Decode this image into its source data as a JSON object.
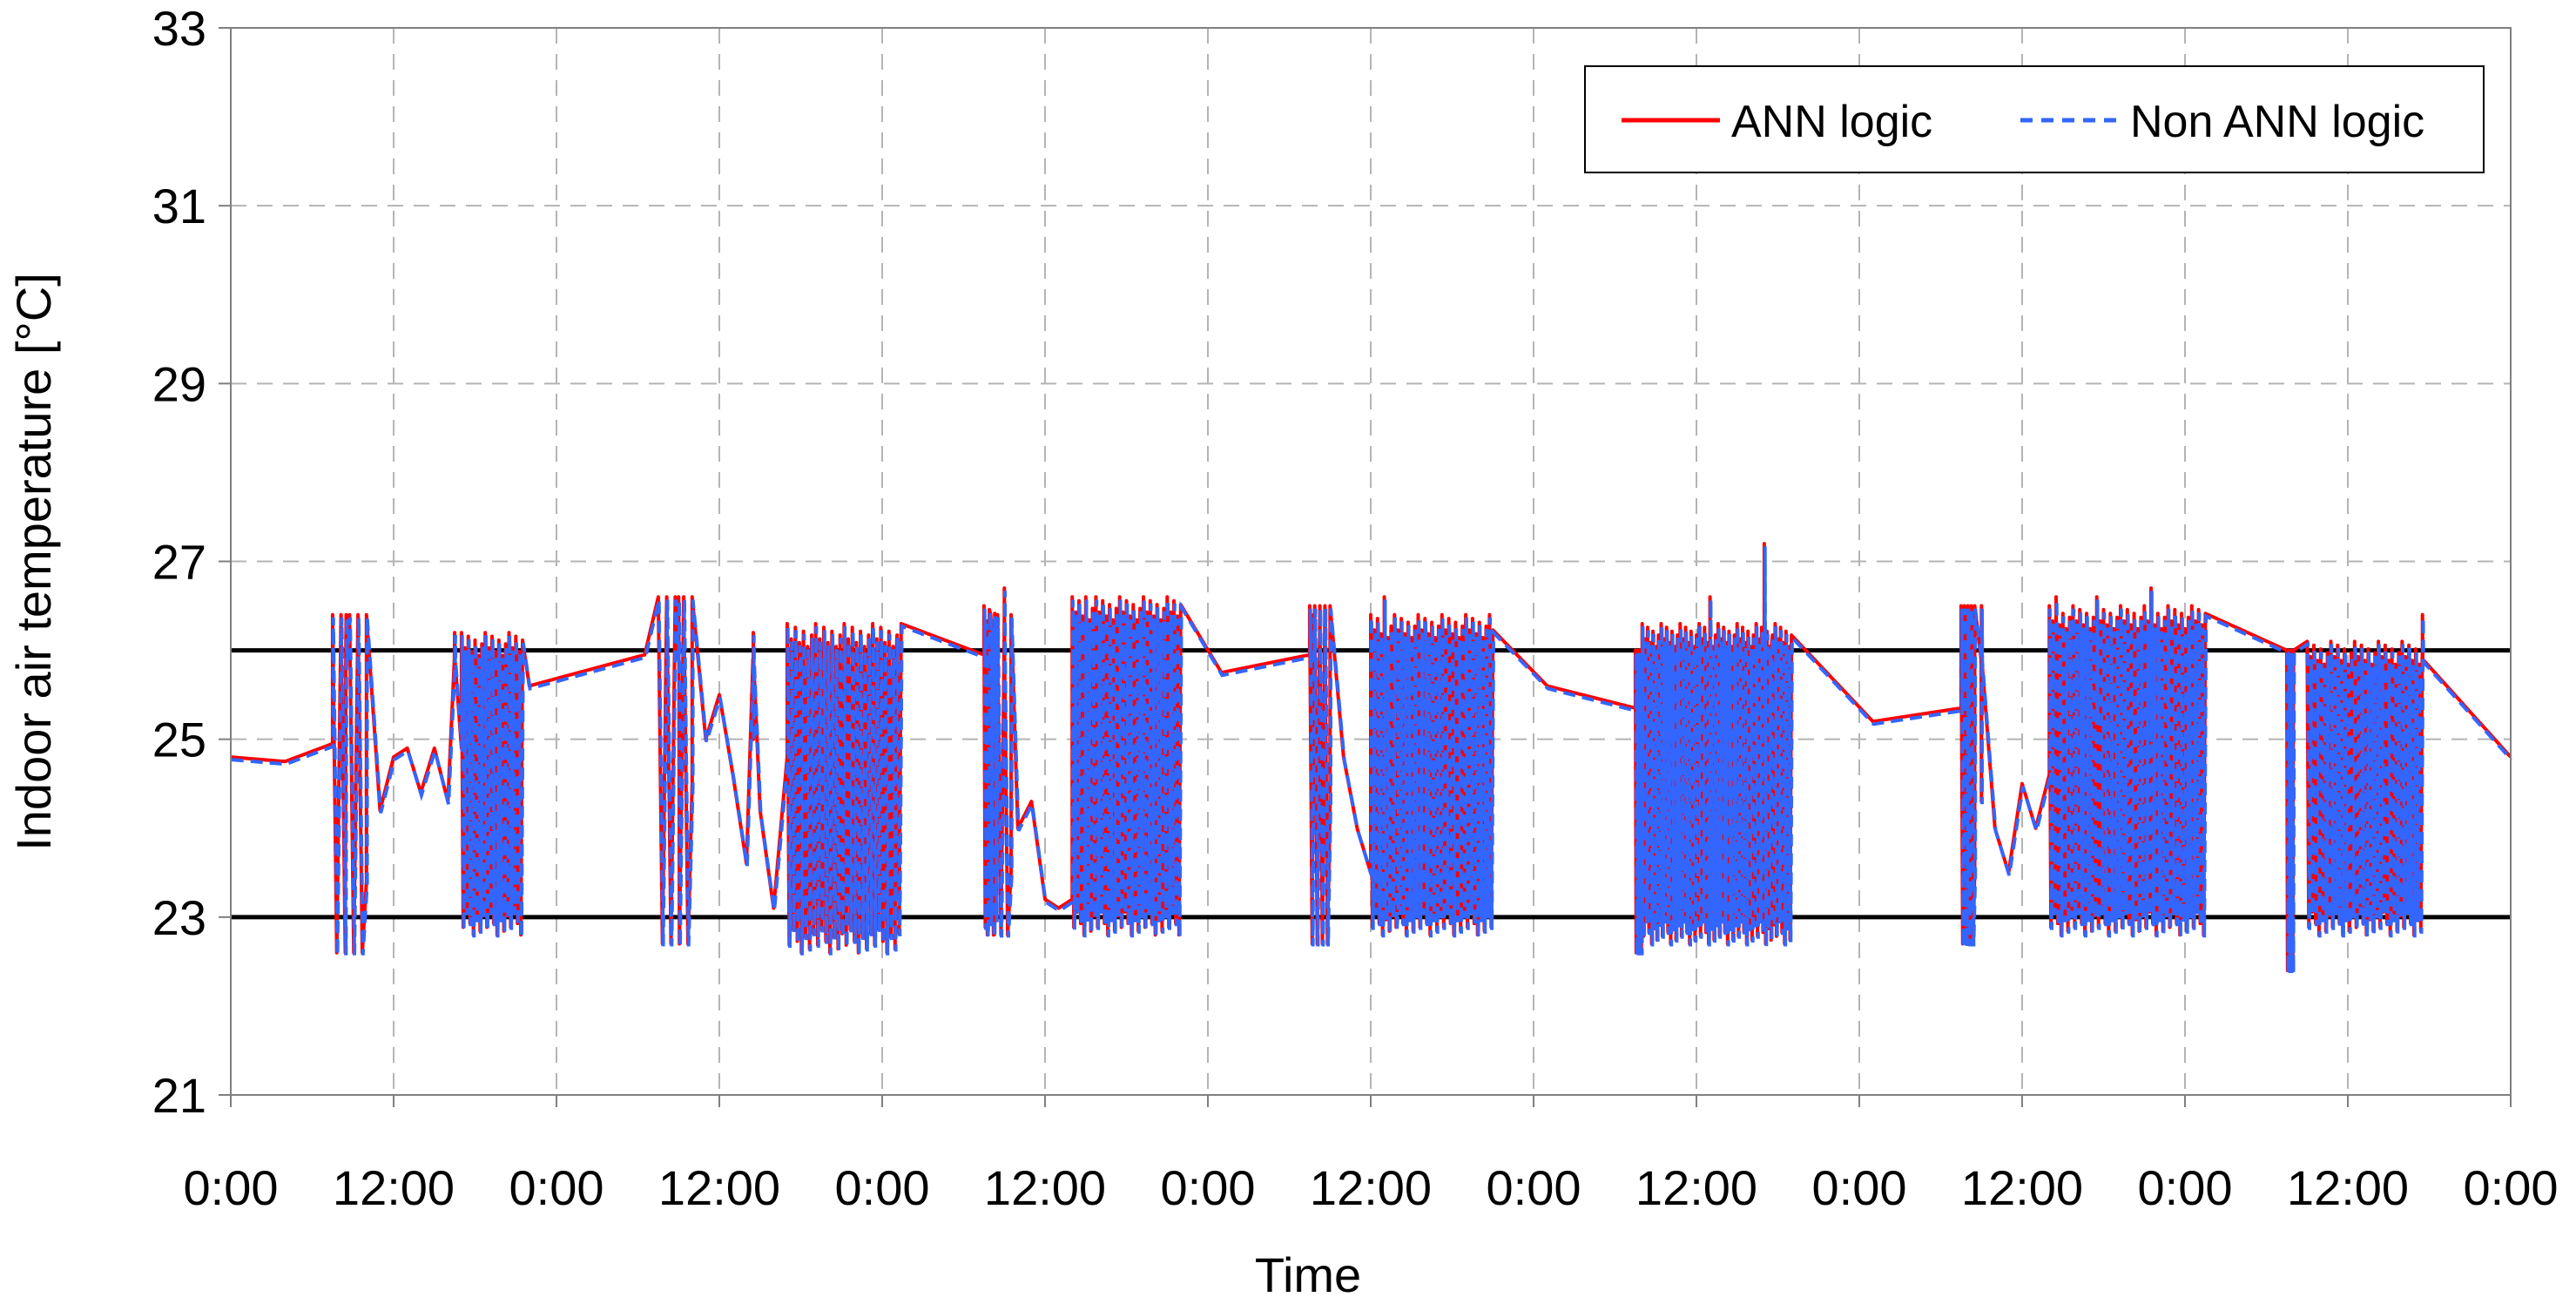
{
  "chart_data": {
    "type": "line",
    "title": "",
    "xlabel": "Time",
    "ylabel": "Indoor air temperature [°C]",
    "xlim": [
      0,
      168
    ],
    "ylim": [
      21,
      33
    ],
    "x_tick_labels": [
      "0:00",
      "12:00",
      "0:00",
      "12:00",
      "0:00",
      "12:00",
      "0:00",
      "12:00",
      "0:00",
      "12:00",
      "0:00",
      "12:00",
      "0:00",
      "12:00",
      "0:00"
    ],
    "y_ticks": [
      21,
      23,
      25,
      27,
      29,
      31,
      33
    ],
    "grid": true,
    "legend_position": "top-right",
    "reference_lines": [
      23,
      26
    ],
    "colors": {
      "ann": "#ff0000",
      "non_ann": "#3366ff",
      "reference": "#000000"
    },
    "series": [
      {
        "name": "ANN logic",
        "style": "solid"
      },
      {
        "name": "Non ANN logic",
        "style": "dashed"
      }
    ],
    "idle_trend": [
      [
        0,
        24.8
      ],
      [
        4,
        24.75
      ],
      [
        7.5,
        24.95
      ],
      [
        17.5,
        25.95
      ],
      [
        22,
        25.6
      ],
      [
        30.5,
        25.95
      ],
      [
        42,
        25.85
      ],
      [
        49,
        25.8
      ],
      [
        55.5,
        25.95
      ],
      [
        66,
        25.9
      ],
      [
        73,
        25.75
      ],
      [
        79.5,
        25.95
      ],
      [
        90,
        25.95
      ],
      [
        97,
        25.6
      ],
      [
        103.5,
        25.35
      ],
      [
        113.5,
        26.0
      ],
      [
        114,
        25.4
      ],
      [
        121,
        25.2
      ],
      [
        127.5,
        25.35
      ],
      [
        137.5,
        25.3
      ],
      [
        138.5,
        25.2
      ],
      [
        141.5,
        25.0
      ],
      [
        144,
        24.8
      ],
      [
        168,
        24.8
      ]
    ],
    "morning_dips": [
      [
        7.5,
        10,
        26.4,
        22.6
      ],
      [
        31.5,
        34,
        26.6,
        22.7
      ],
      [
        55.5,
        57.5,
        26.4,
        22.8
      ],
      [
        79.5,
        81,
        26.5,
        22.7
      ],
      [
        103.5,
        104,
        26.0,
        22.6
      ],
      [
        127.5,
        128.5,
        26.5,
        22.7
      ],
      [
        151.5,
        152,
        26.0,
        22.4
      ]
    ],
    "recovery_paths": [
      [
        [
          10,
          23.4
        ],
        [
          11,
          24.2
        ],
        [
          12,
          24.8
        ],
        [
          13,
          24.9
        ],
        [
          14,
          24.4
        ],
        [
          15,
          24.9
        ],
        [
          16,
          24.3
        ],
        [
          17,
          24.9
        ],
        [
          17.5,
          25.0
        ]
      ],
      [
        [
          34,
          24.5
        ],
        [
          35,
          25.0
        ],
        [
          36,
          25.5
        ],
        [
          37,
          24.6
        ],
        [
          38,
          23.6
        ],
        [
          38.5,
          25.0
        ],
        [
          39,
          24.2
        ],
        [
          40,
          23.1
        ],
        [
          41,
          24.8
        ],
        [
          42,
          24.0
        ]
      ],
      [
        [
          57.5,
          23.5
        ],
        [
          58,
          24.0
        ],
        [
          59,
          24.3
        ],
        [
          60,
          23.2
        ],
        [
          61,
          23.1
        ],
        [
          62,
          23.2
        ]
      ],
      [
        [
          81,
          24.3
        ],
        [
          82,
          24.8
        ],
        [
          83,
          24.0
        ],
        [
          84,
          23.5
        ],
        [
          85,
          23.1
        ],
        [
          86,
          23.2
        ]
      ],
      [
        [
          128.5,
          23.5
        ],
        [
          129,
          24.3
        ],
        [
          130,
          24.0
        ],
        [
          131,
          23.5
        ],
        [
          132,
          24.5
        ],
        [
          133,
          24.0
        ],
        [
          134,
          24.6
        ]
      ]
    ],
    "cycling_blocks": [
      [
        17,
        21.5,
        26.2,
        22.8,
        0.25
      ],
      [
        41,
        49.5,
        26.3,
        22.6,
        0.3
      ],
      [
        55.5,
        56.5,
        26.5,
        22.8,
        0.2
      ],
      [
        62,
        70,
        26.6,
        22.8,
        0.25
      ],
      [
        84,
        93,
        26.4,
        22.8,
        0.25
      ],
      [
        104,
        115,
        26.3,
        22.7,
        0.2
      ],
      [
        134,
        145.5,
        26.5,
        22.8,
        0.25
      ],
      [
        153,
        161.5,
        26.1,
        22.8,
        0.25
      ]
    ],
    "spikes": [
      [
        8.5,
        26.4
      ],
      [
        16.5,
        26.2
      ],
      [
        33,
        26.6
      ],
      [
        38.5,
        26.2
      ],
      [
        57,
        26.7
      ],
      [
        63,
        26.6
      ],
      [
        66.5,
        26.5
      ],
      [
        79.8,
        26.4
      ],
      [
        85,
        26.6
      ],
      [
        109,
        26.6
      ],
      [
        113,
        27.2
      ],
      [
        129,
        26.5
      ],
      [
        134.5,
        26.6
      ],
      [
        137.5,
        26.6
      ],
      [
        141.5,
        26.7
      ],
      [
        161.5,
        26.4
      ]
    ]
  }
}
